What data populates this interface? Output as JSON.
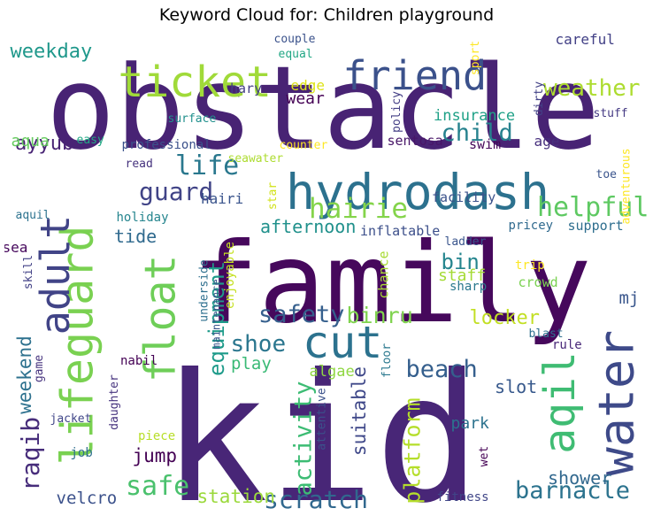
{
  "title": "Keyword Cloud for: Children playground",
  "chart_data": {
    "type": "wordcloud",
    "title": "Keyword Cloud for: Children playground",
    "words": [
      {
        "text": "obstacle",
        "color": "#482374"
      },
      {
        "text": "family",
        "color": "#46085c"
      },
      {
        "text": "kid",
        "color": "#482677"
      },
      {
        "text": "hydrodash",
        "color": "#2c718e"
      },
      {
        "text": "ticket",
        "color": "#a0da39"
      },
      {
        "text": "friend",
        "color": "#3b518b"
      },
      {
        "text": "lifeguard",
        "color": "#7ad151"
      },
      {
        "text": "adult",
        "color": "#414487"
      },
      {
        "text": "float",
        "color": "#6ece58"
      },
      {
        "text": "cut",
        "color": "#2c728e"
      },
      {
        "text": "water",
        "color": "#3e4a89"
      },
      {
        "text": "aqil",
        "color": "#3fbc73"
      },
      {
        "text": "weather",
        "color": "#addc30"
      },
      {
        "text": "child",
        "color": "#26828e"
      },
      {
        "text": "weekday",
        "color": "#1f988b"
      },
      {
        "text": "life",
        "color": "#2a788e"
      },
      {
        "text": "guard",
        "color": "#414487"
      },
      {
        "text": "helpful",
        "color": "#5ec962"
      },
      {
        "text": "hairie",
        "color": "#84d44b"
      },
      {
        "text": "afternoon",
        "color": "#21918c"
      },
      {
        "text": "safety",
        "color": "#355f8d"
      },
      {
        "text": "bin",
        "color": "#25858e"
      },
      {
        "text": "binru",
        "color": "#7fd34e"
      },
      {
        "text": "staff",
        "color": "#a5db36"
      },
      {
        "text": "equipment",
        "color": "#1e9b8a"
      },
      {
        "text": "shoe",
        "color": "#2a768e"
      },
      {
        "text": "activity",
        "color": "#3dbc74"
      },
      {
        "text": "suitable",
        "color": "#3f4889"
      },
      {
        "text": "platform",
        "color": "#b5de2b"
      },
      {
        "text": "locker",
        "color": "#c2df23"
      },
      {
        "text": "beach",
        "color": "#355f8d"
      },
      {
        "text": "safe",
        "color": "#4ac16d"
      },
      {
        "text": "scratch",
        "color": "#31688e"
      },
      {
        "text": "station",
        "color": "#9bd93c"
      },
      {
        "text": "barnacle",
        "color": "#2c738e"
      },
      {
        "text": "raqib",
        "color": "#472d7b"
      },
      {
        "text": "weekend",
        "color": "#2d718e"
      },
      {
        "text": "ayyub",
        "color": "#482374"
      },
      {
        "text": "aqua",
        "color": "#65cb5e"
      },
      {
        "text": "tide",
        "color": "#306a8e"
      },
      {
        "text": "jump",
        "color": "#440154"
      },
      {
        "text": "play",
        "color": "#3aba76"
      },
      {
        "text": "algae",
        "color": "#90d743"
      },
      {
        "text": "slot",
        "color": "#38598c"
      },
      {
        "text": "park",
        "color": "#2c728e"
      },
      {
        "text": "shower",
        "color": "#31688e"
      },
      {
        "text": "velcro",
        "color": "#3b518b"
      },
      {
        "text": "mj",
        "color": "#39568c"
      },
      {
        "text": "edge",
        "color": "#dde318"
      },
      {
        "text": "wear",
        "color": "#440154"
      },
      {
        "text": "insurance",
        "color": "#1fa187"
      },
      {
        "text": "couple",
        "color": "#3b528b"
      },
      {
        "text": "careful",
        "color": "#424086"
      },
      {
        "text": "equal",
        "color": "#22a785"
      },
      {
        "text": "sport",
        "color": "#fde725"
      },
      {
        "text": "policy",
        "color": "#433e85"
      },
      {
        "text": "dirty",
        "color": "#424186"
      },
      {
        "text": "stuff",
        "color": "#443983"
      },
      {
        "text": "hary",
        "color": "#433e85"
      },
      {
        "text": "surface",
        "color": "#21908d"
      },
      {
        "text": "easy",
        "color": "#22a884"
      },
      {
        "text": "professional",
        "color": "#3b518b"
      },
      {
        "text": "counter",
        "color": "#fde725"
      },
      {
        "text": "sentosa",
        "color": "#481668"
      },
      {
        "text": "swim",
        "color": "#46075a"
      },
      {
        "text": "age",
        "color": "#472f7d"
      },
      {
        "text": "read",
        "color": "#46337e"
      },
      {
        "text": "seawater",
        "color": "#addc30"
      },
      {
        "text": "hairi",
        "color": "#3a548c"
      },
      {
        "text": "star",
        "color": "#d2e21b"
      },
      {
        "text": "facility",
        "color": "#3b528b"
      },
      {
        "text": "toe",
        "color": "#3a548c"
      },
      {
        "text": "adventurous",
        "color": "#fde725"
      },
      {
        "text": "aquil",
        "color": "#2c728e"
      },
      {
        "text": "holiday",
        "color": "#25858e"
      },
      {
        "text": "enjoyable",
        "color": "#c5e021"
      },
      {
        "text": "inflatable",
        "color": "#3c4f8a"
      },
      {
        "text": "pricey",
        "color": "#306a8e"
      },
      {
        "text": "support",
        "color": "#2e6e8e"
      },
      {
        "text": "ladder",
        "color": "#39558c"
      },
      {
        "text": "sea",
        "color": "#46085c"
      },
      {
        "text": "skill",
        "color": "#424186"
      },
      {
        "text": "underside",
        "color": "#2e6f8e"
      },
      {
        "text": "maintenance",
        "color": "#3a548c"
      },
      {
        "text": "chance",
        "color": "#a8db34"
      },
      {
        "text": "trip",
        "color": "#fde725"
      },
      {
        "text": "crowd",
        "color": "#7ad151"
      },
      {
        "text": "sharp",
        "color": "#2a788e"
      },
      {
        "text": "blast",
        "color": "#2e6f8e"
      },
      {
        "text": "rule",
        "color": "#482878"
      },
      {
        "text": "nabil",
        "color": "#440154"
      },
      {
        "text": "game",
        "color": "#46337e"
      },
      {
        "text": "daughter",
        "color": "#46337e"
      },
      {
        "text": "floor",
        "color": "#2a788e"
      },
      {
        "text": "attentive",
        "color": "#3b528b"
      },
      {
        "text": "jacket",
        "color": "#404688"
      },
      {
        "text": "piece",
        "color": "#b8de29"
      },
      {
        "text": "job",
        "color": "#2e6e8e"
      },
      {
        "text": "wet",
        "color": "#440154"
      },
      {
        "text": "fitness",
        "color": "#404688"
      }
    ]
  }
}
